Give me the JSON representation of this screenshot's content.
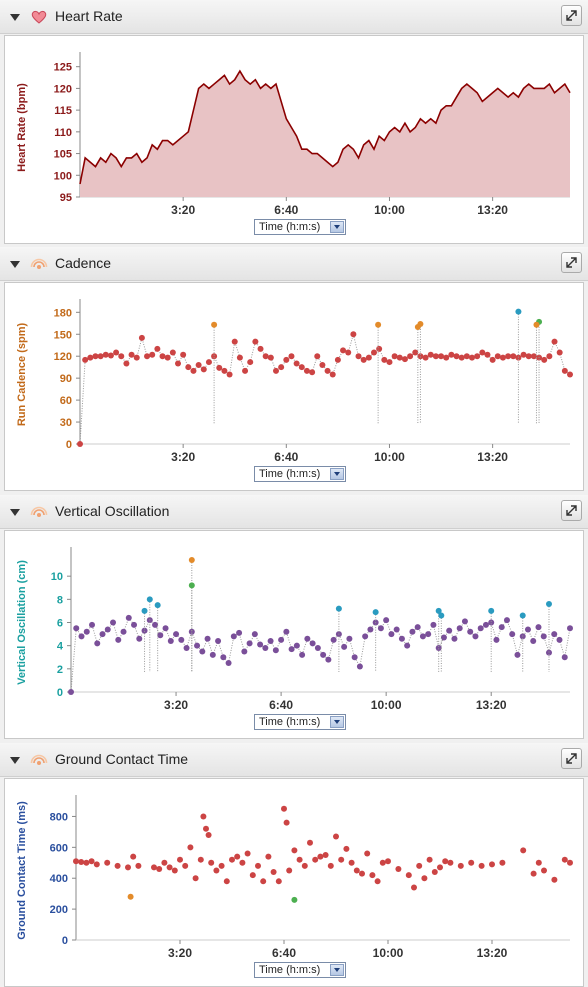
{
  "panels": [
    {
      "title": "Heart Rate",
      "icon": "heart-icon"
    },
    {
      "title": "Cadence",
      "icon": "running-signal-icon"
    },
    {
      "title": "Vertical Oscillation",
      "icon": "running-signal-icon"
    },
    {
      "title": "Ground Contact Time",
      "icon": "running-signal-icon"
    }
  ],
  "time_select_label": "Time (h:m:s)",
  "colors": {
    "hr_line": "#8b0000",
    "hr_fill": "#e8c3c5",
    "red_dot": "#cc4444",
    "purple_dot": "#7a4f99",
    "orange_dot": "#e38b2a",
    "green_dot": "#4caf50",
    "teal_dot": "#2a9bc0",
    "cadence_axis": "#c26a1a",
    "vo_axis": "#1aa0a0",
    "gct_axis": "#2a4f9e",
    "hr_axis": "#8b1a1a"
  },
  "chart_data": [
    {
      "type": "area",
      "title": "Heart Rate",
      "xlabel": "Time (h:m:s)",
      "ylabel": "Heart Rate (bpm)",
      "x_ticks": [
        "3:20",
        "6:40",
        "10:00",
        "13:20"
      ],
      "x_tick_seconds": [
        200,
        400,
        600,
        800
      ],
      "xlim": [
        0,
        950
      ],
      "y_ticks": [
        95,
        100,
        105,
        110,
        115,
        120,
        125
      ],
      "ylim": [
        95,
        127
      ],
      "series": [
        {
          "x": [
            0,
            10,
            20,
            30,
            40,
            50,
            60,
            70,
            80,
            90,
            100,
            110,
            120,
            130,
            140,
            150,
            160,
            170,
            180,
            190,
            200,
            210,
            220,
            230,
            240,
            250,
            260,
            270,
            280,
            290,
            300,
            310,
            320,
            330,
            340,
            350,
            360,
            370,
            380,
            390,
            400,
            410,
            420,
            430,
            440,
            450,
            460,
            470,
            480,
            490,
            500,
            510,
            520,
            530,
            540,
            550,
            560,
            570,
            580,
            590,
            600,
            610,
            620,
            630,
            640,
            650,
            660,
            670,
            680,
            690,
            700,
            710,
            720,
            730,
            740,
            750,
            760,
            770,
            780,
            790,
            800,
            810,
            820,
            830,
            840,
            850,
            860,
            870,
            880,
            890,
            900,
            910,
            920,
            930,
            940,
            950
          ],
          "y": [
            98,
            104,
            103,
            102,
            104,
            103,
            105,
            104,
            102,
            104,
            104,
            105,
            103,
            104,
            107,
            106,
            108,
            108,
            107,
            108,
            109,
            110,
            115,
            120,
            121,
            120,
            121,
            122,
            123,
            121,
            122,
            124,
            122,
            121,
            122,
            120,
            121,
            120,
            121,
            117,
            113,
            111,
            109,
            106,
            106,
            105,
            105,
            104,
            103,
            102,
            103,
            106,
            107,
            106,
            104,
            107,
            108,
            106,
            109,
            108,
            110,
            111,
            110,
            112,
            110,
            111,
            113,
            112,
            113,
            112,
            115,
            116,
            116,
            118,
            120,
            121,
            120,
            119,
            117,
            118,
            119,
            120,
            119,
            118,
            119,
            118,
            120,
            121,
            120,
            120,
            120,
            121,
            119,
            120,
            121,
            119
          ]
        }
      ]
    },
    {
      "type": "scatter",
      "title": "Cadence",
      "xlabel": "Time (h:m:s)",
      "ylabel": "Run Cadence (spm)",
      "x_ticks": [
        "3:20",
        "6:40",
        "10:00",
        "13:20"
      ],
      "x_tick_seconds": [
        200,
        400,
        600,
        800
      ],
      "xlim": [
        0,
        950
      ],
      "y_ticks": [
        0,
        30,
        60,
        90,
        120,
        150,
        180
      ],
      "ylim": [
        0,
        190
      ],
      "series": [
        {
          "x": [
            0,
            10,
            20,
            30,
            40,
            50,
            60,
            70,
            80,
            90,
            100,
            110,
            120,
            130,
            140,
            150,
            160,
            170,
            180,
            190,
            200,
            210,
            220,
            230,
            240,
            250,
            260,
            270,
            280,
            290,
            300,
            310,
            320,
            330,
            340,
            350,
            360,
            370,
            380,
            390,
            400,
            410,
            420,
            430,
            440,
            450,
            460,
            470,
            480,
            490,
            500,
            510,
            520,
            530,
            540,
            550,
            560,
            570,
            580,
            590,
            600,
            610,
            620,
            630,
            640,
            650,
            660,
            670,
            680,
            690,
            700,
            710,
            720,
            730,
            740,
            750,
            760,
            770,
            780,
            790,
            800,
            810,
            820,
            830,
            840,
            850,
            860,
            870,
            880,
            890,
            900,
            910,
            920,
            930,
            940,
            950
          ],
          "y": [
            0,
            115,
            118,
            120,
            120,
            122,
            121,
            125,
            120,
            110,
            122,
            118,
            145,
            120,
            122,
            130,
            120,
            118,
            125,
            110,
            122,
            105,
            100,
            108,
            102,
            112,
            120,
            104,
            100,
            95,
            140,
            118,
            100,
            112,
            140,
            130,
            120,
            118,
            100,
            105,
            115,
            120,
            110,
            105,
            100,
            98,
            120,
            108,
            100,
            95,
            115,
            128,
            125,
            150,
            120,
            115,
            118,
            125,
            130,
            115,
            112,
            120,
            118,
            116,
            120,
            125,
            120,
            118,
            122,
            120,
            120,
            118,
            122,
            120,
            118,
            120,
            118,
            120,
            125,
            122,
            115,
            120,
            118,
            120,
            120,
            118,
            122,
            120,
            120,
            118,
            115,
            120,
            140,
            125,
            100,
            95
          ],
          "highlight": [
            {
              "x": 260,
              "y": 163,
              "c": "orange"
            },
            {
              "x": 578,
              "y": 163,
              "c": "orange"
            },
            {
              "x": 655,
              "y": 160,
              "c": "orange"
            },
            {
              "x": 660,
              "y": 164,
              "c": "orange"
            },
            {
              "x": 850,
              "y": 181,
              "c": "teal"
            },
            {
              "x": 890,
              "y": 167,
              "c": "green"
            },
            {
              "x": 885,
              "y": 163,
              "c": "orange"
            }
          ]
        }
      ]
    },
    {
      "type": "scatter",
      "title": "Vertical Oscillation",
      "xlabel": "Time (h:m:s)",
      "ylabel": "Vertical Oscillation (cm)",
      "x_ticks": [
        "3:20",
        "6:40",
        "10:00",
        "13:20"
      ],
      "x_tick_seconds": [
        200,
        400,
        600,
        800
      ],
      "xlim": [
        0,
        950
      ],
      "y_ticks": [
        0,
        2,
        4,
        6,
        8,
        10
      ],
      "ylim": [
        0,
        12
      ],
      "series": [
        {
          "x": [
            0,
            10,
            20,
            30,
            40,
            50,
            60,
            70,
            80,
            90,
            100,
            110,
            120,
            130,
            140,
            150,
            160,
            170,
            180,
            190,
            200,
            210,
            220,
            230,
            240,
            250,
            260,
            270,
            280,
            290,
            300,
            310,
            320,
            330,
            340,
            350,
            360,
            370,
            380,
            390,
            400,
            410,
            420,
            430,
            440,
            450,
            460,
            470,
            480,
            490,
            500,
            510,
            520,
            530,
            540,
            550,
            560,
            570,
            580,
            590,
            600,
            610,
            620,
            630,
            640,
            650,
            660,
            670,
            680,
            690,
            700,
            710,
            720,
            730,
            740,
            750,
            760,
            770,
            780,
            790,
            800,
            810,
            820,
            830,
            840,
            850,
            860,
            870,
            880,
            890,
            900,
            910,
            920,
            930,
            940,
            950
          ],
          "y": [
            0,
            5.5,
            4.8,
            5.2,
            5.8,
            4.2,
            5.0,
            5.4,
            6.0,
            4.5,
            5.2,
            6.4,
            5.8,
            4.6,
            5.3,
            6.2,
            5.8,
            4.9,
            5.5,
            4.4,
            5.0,
            4.5,
            3.8,
            5.2,
            4.0,
            3.5,
            4.6,
            3.2,
            4.4,
            3.0,
            2.5,
            4.8,
            5.1,
            3.5,
            4.2,
            5.0,
            4.1,
            3.8,
            4.4,
            3.6,
            4.5,
            5.2,
            3.7,
            4.0,
            3.2,
            4.6,
            4.2,
            3.8,
            3.2,
            2.8,
            4.5,
            5.0,
            3.9,
            4.6,
            3.0,
            2.2,
            4.8,
            5.4,
            6.0,
            5.5,
            6.2,
            5.0,
            5.4,
            4.6,
            4.0,
            5.2,
            5.6,
            4.8,
            5.0,
            5.8,
            3.8,
            4.7,
            5.3,
            4.6,
            5.5,
            6.1,
            5.2,
            4.8,
            5.5,
            5.8,
            6.0,
            4.5,
            5.6,
            6.2,
            5.0,
            3.2,
            4.8,
            5.4,
            4.4,
            5.6,
            4.8,
            3.4,
            5.0,
            4.5,
            3.0,
            5.5
          ],
          "highlight": [
            {
              "x": 230,
              "y": 11.4,
              "c": "orange"
            },
            {
              "x": 230,
              "y": 9.2,
              "c": "green"
            },
            {
              "x": 150,
              "y": 8.0,
              "c": "teal"
            },
            {
              "x": 140,
              "y": 7.0,
              "c": "teal"
            },
            {
              "x": 165,
              "y": 7.5,
              "c": "teal"
            },
            {
              "x": 510,
              "y": 7.2,
              "c": "teal"
            },
            {
              "x": 580,
              "y": 6.9,
              "c": "teal"
            },
            {
              "x": 700,
              "y": 7.0,
              "c": "teal"
            },
            {
              "x": 705,
              "y": 6.6,
              "c": "teal"
            },
            {
              "x": 800,
              "y": 7.0,
              "c": "teal"
            },
            {
              "x": 860,
              "y": 6.6,
              "c": "teal"
            },
            {
              "x": 910,
              "y": 7.6,
              "c": "teal"
            }
          ]
        }
      ]
    },
    {
      "type": "scatter",
      "title": "Ground Contact Time",
      "xlabel": "Time (h:m:s)",
      "ylabel": "Ground Contact Time (ms)",
      "x_ticks": [
        "3:20",
        "6:40",
        "10:00",
        "13:20"
      ],
      "x_tick_seconds": [
        200,
        400,
        600,
        800
      ],
      "xlim": [
        0,
        950
      ],
      "y_ticks": [
        0,
        200,
        400,
        600,
        800
      ],
      "ylim": [
        0,
        900
      ],
      "series": [
        {
          "x": [
            0,
            10,
            20,
            30,
            40,
            60,
            80,
            100,
            110,
            120,
            150,
            160,
            170,
            180,
            190,
            200,
            210,
            220,
            230,
            240,
            245,
            250,
            255,
            260,
            270,
            280,
            290,
            300,
            310,
            320,
            330,
            340,
            350,
            360,
            370,
            380,
            390,
            400,
            405,
            410,
            420,
            430,
            440,
            450,
            460,
            470,
            480,
            490,
            500,
            510,
            520,
            530,
            540,
            550,
            560,
            570,
            580,
            590,
            600,
            620,
            640,
            650,
            660,
            670,
            680,
            690,
            700,
            710,
            720,
            740,
            760,
            780,
            800,
            820,
            860,
            880,
            890,
            900,
            920,
            940,
            950
          ],
          "y": [
            510,
            505,
            500,
            510,
            490,
            500,
            480,
            470,
            540,
            480,
            470,
            460,
            500,
            470,
            450,
            520,
            480,
            600,
            400,
            520,
            800,
            720,
            680,
            500,
            450,
            480,
            380,
            520,
            540,
            500,
            560,
            420,
            480,
            380,
            540,
            440,
            380,
            850,
            760,
            450,
            580,
            520,
            480,
            630,
            520,
            540,
            550,
            480,
            670,
            520,
            590,
            500,
            450,
            430,
            560,
            420,
            380,
            500,
            510,
            460,
            420,
            340,
            480,
            400,
            520,
            440,
            470,
            510,
            500,
            480,
            500,
            480,
            490,
            500,
            580,
            430,
            500,
            450,
            390,
            520,
            500
          ],
          "highlight": [
            {
              "x": 105,
              "y": 280,
              "c": "orange"
            },
            {
              "x": 420,
              "y": 260,
              "c": "green"
            }
          ]
        }
      ]
    }
  ]
}
